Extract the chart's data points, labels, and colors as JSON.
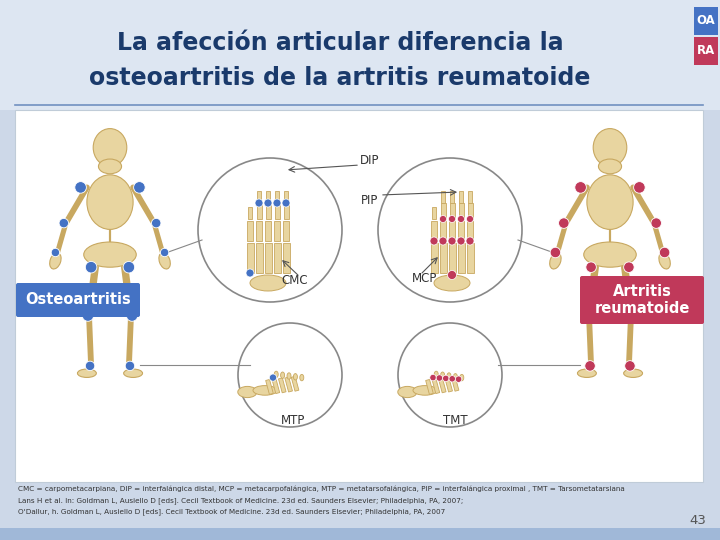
{
  "title_line1": "La afección articular diferencia la",
  "title_line2": "osteoartritis de la artritis reumatoide",
  "title_color": "#1a3a6b",
  "slide_bg": "#cdd8e8",
  "header_bg": "#dde6f2",
  "oa_label": "OA",
  "ra_label": "RA",
  "oa_bg": "#4472c4",
  "ra_bg": "#c0395a",
  "left_label": "Osteoartritis",
  "right_label": "Artritis\nreumatoide",
  "left_label_bg": "#4472c4",
  "right_label_bg": "#c0395a",
  "label_text_color": "#ffffff",
  "footnote1": "CMC = carpometacarpiana, DIP = interfalángica distal, MCP = metacarpofalángica, MTP = metatarsofalángica, PIP = interfalángica proximal , TMT = Tarsometatarsiana",
  "footnote2": "Lans H et al. In: Goldman L, Ausiello D [eds]. Cecil Textbook of Medicine. 23d ed. Saunders Elsevier; Philadelphia, PA, 2007;",
  "footnote3": "O'Dallur, h. Goldman L, Ausiello D [eds]. Cecil Textbook of Medicine. 23d ed. Saunders Elsevier; Philadelphia, PA, 2007",
  "page_number": "43",
  "bone_color": "#e8d5a0",
  "bone_edge": "#c8a860",
  "oa_dot": "#4472c4",
  "ra_dot": "#c0395a",
  "circle_edge": "#888888",
  "label_dark": "#333333",
  "content_bg": "#ffffff",
  "sep_color": "#7090c0"
}
